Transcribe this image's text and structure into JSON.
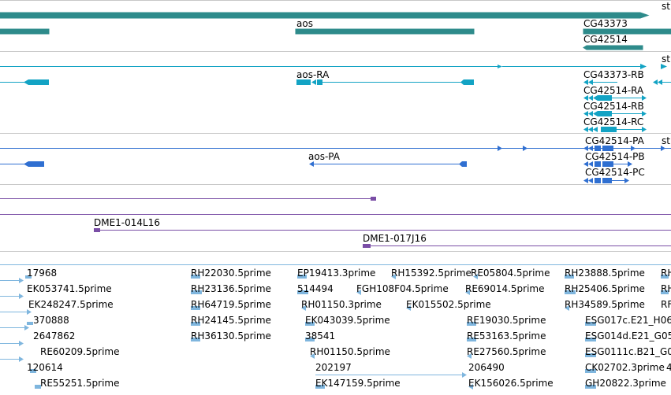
{
  "colors": {
    "gene": "#2e8b8b",
    "transcript": "#13a3c4",
    "protein": "#2f6fd1",
    "clone": "#7a4ea6",
    "est": "#7fb6de"
  },
  "icons": {
    "strand_arrow": "arrow-icon"
  },
  "tracks": {
    "genes": {
      "labels": [
        "st",
        "aos",
        "CG43373",
        "CG42514"
      ]
    },
    "transcripts": {
      "labels": [
        "st",
        "aos-RA",
        "CG43373-RB",
        "CG42514-RA",
        "CG42514-RB",
        "CG42514-RC"
      ]
    },
    "proteins": {
      "labels": [
        "st",
        "aos-PA",
        "CG42514-PA",
        "CG42514-PB",
        "CG42514-PC"
      ]
    },
    "clones": {
      "labels": [
        "DME1-014L16",
        "DME1-017J16"
      ]
    },
    "ests": {
      "labels": [
        "17968",
        "EK053741.5prime",
        "EK248247.5prime",
        "370888",
        "2647862",
        "RE60209.5prime",
        "120614",
        "RE55251.5prime",
        "RH22030.5prime",
        "RH23136.5prime",
        "RH64719.5prime",
        "RH24145.5prime",
        "RH36130.5prime",
        "EP19413.3prime",
        "RH15392.5prime",
        "RE05804.5prime",
        "514494",
        "FGH108F04.5prime",
        "RE69014.5prime",
        "RH01150.3prime",
        "EK015502.5prime",
        "EK043039.5prime",
        "RE19030.5prime",
        "38541",
        "RE53163.5prime",
        "RH01150.5prime",
        "RE27560.5prime",
        "202197",
        "206490",
        "EK147159.5prime",
        "EK156026.5prime",
        "RH23888.5prime",
        "RH25406.5prime",
        "RH34589.5prime",
        "ESG017c.E21_H06",
        "ESG014d.E21_G05",
        "ESG0111c.B21_G0",
        "CK02702.3prime",
        "4",
        "GH20822.3prime",
        "RH",
        "RH",
        "RF"
      ]
    }
  }
}
